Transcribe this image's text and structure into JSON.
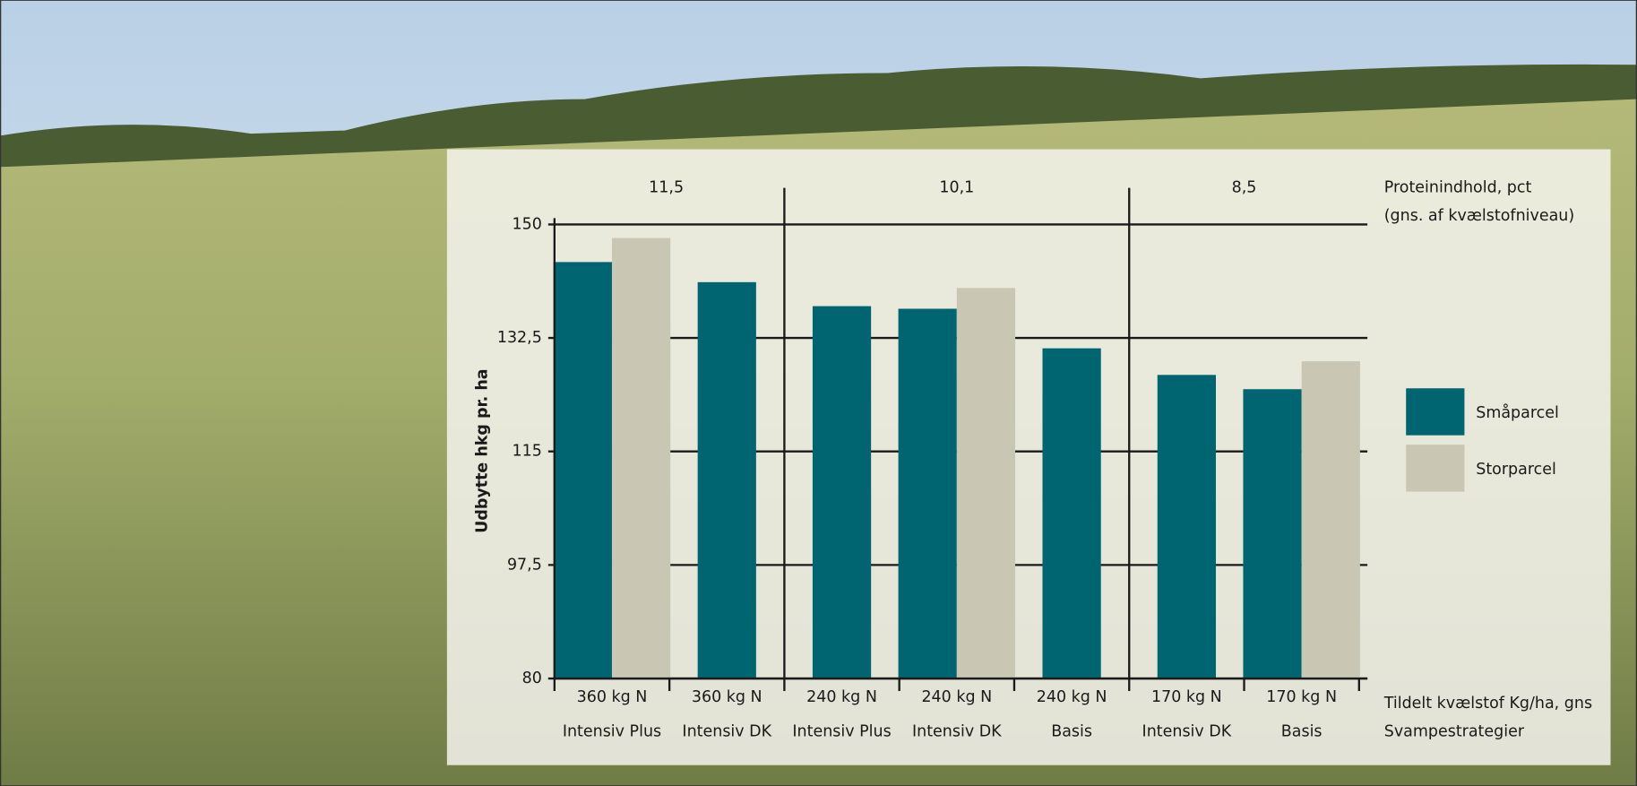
{
  "chart_data": {
    "type": "bar",
    "y_label": "Udbytte hkg pr. ha",
    "protein_label": [
      "Proteinindhold, pct",
      "(gns. af kvælstofniveau)"
    ],
    "protein_groups": [
      "11,5",
      "10,1",
      "8,5"
    ],
    "x_labels": [
      "Tildelt kvælstof Kg/ha, gns",
      "Svampestrategier"
    ],
    "categories": [
      "360 kg N",
      "360 kg N",
      "240 kg N",
      "240 kg N",
      "240 kg N",
      "170 kg N",
      "170 kg N"
    ],
    "strategies": [
      "Intensiv Plus",
      "Intensiv DK",
      "Intensiv Plus",
      "Intensiv DK",
      "Basis",
      "Intensiv DK",
      "Basis"
    ],
    "series": [
      {
        "name": "Småparcel",
        "color": "#006570",
        "values": [
          144.2,
          141.1,
          137.4,
          137.0,
          130.9,
          126.8,
          124.6
        ]
      },
      {
        "name": "Storparcel",
        "color": "#c9c6b4",
        "values": [
          147.9,
          null,
          null,
          140.2,
          null,
          null,
          128.9
        ]
      }
    ],
    "ylim": [
      80,
      150
    ],
    "yticks": [
      80,
      {
        "value": 97.5,
        "label": "97,5"
      },
      115,
      {
        "value": 132.5,
        "label": "132,5"
      },
      150
    ],
    "grid": true
  }
}
